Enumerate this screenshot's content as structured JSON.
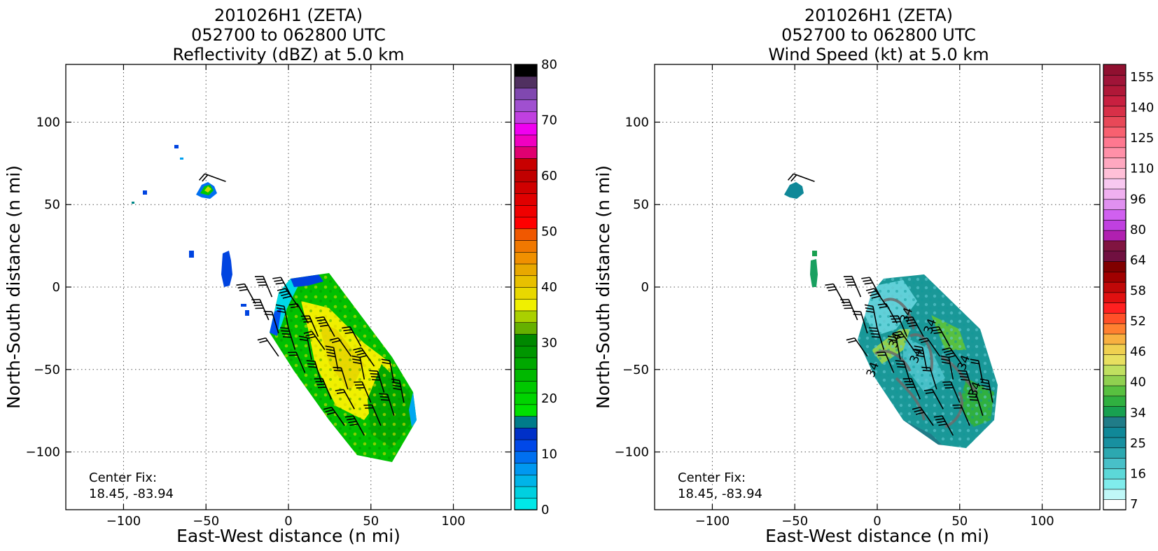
{
  "chart_data": [
    {
      "type": "heatmap",
      "title_lines": [
        "201026H1 (ZETA)",
        "052700 to 062800 UTC",
        "Reflectivity (dBZ) at 5.0 km"
      ],
      "xlabel": "East-West distance (n mi)",
      "ylabel": "North-South distance (n mi)",
      "xlim": [
        -135,
        135
      ],
      "ylim": [
        -135,
        135
      ],
      "xticks": [
        -100,
        -50,
        0,
        50,
        100
      ],
      "yticks": [
        -100,
        -50,
        0,
        50,
        100
      ],
      "grid": true,
      "annotation": "Center Fix:\n18.45, -83.94",
      "colorbar": {
        "range": [
          0,
          80
        ],
        "ticks": [
          0,
          10,
          20,
          30,
          40,
          50,
          60,
          70,
          80
        ],
        "colors": [
          "#00e8e8",
          "#00d0e0",
          "#00b4e8",
          "#0098f0",
          "#0070f0",
          "#0048e8",
          "#0030c8",
          "#007b8a",
          "#00e000",
          "#00d400",
          "#00c800",
          "#00b800",
          "#00a800",
          "#009600",
          "#008800",
          "#66b000",
          "#aad000",
          "#f0f000",
          "#e8d800",
          "#e8c000",
          "#e8a800",
          "#f09000",
          "#f07800",
          "#f05800",
          "#ff0000",
          "#f00000",
          "#e00000",
          "#d00000",
          "#c00000",
          "#c80000",
          "#e00070",
          "#f000c0",
          "#f000f0",
          "#c040e0",
          "#a050d0",
          "#8048b0",
          "#503060",
          "#000000"
        ]
      },
      "barbs": "wind barbs at 5.0 km"
    },
    {
      "type": "heatmap",
      "title_lines": [
        "201026H1 (ZETA)",
        "052700 to 062800 UTC",
        "Wind Speed (kt) at 5.0 km"
      ],
      "xlabel": "East-West distance (n mi)",
      "ylabel": "North-South distance (n mi)",
      "xlim": [
        -135,
        135
      ],
      "ylim": [
        -135,
        135
      ],
      "xticks": [
        -100,
        -50,
        0,
        50,
        100
      ],
      "yticks": [
        -100,
        -50,
        0,
        50,
        100
      ],
      "grid": true,
      "annotation": "Center Fix:\n18.45, -83.94",
      "contour_labels": [
        "34",
        "34",
        "34",
        "34",
        "34",
        "34",
        "34"
      ],
      "colorbar": {
        "labels": [
          "7",
          "16",
          "25",
          "34",
          "40",
          "46",
          "52",
          "58",
          "64",
          "80",
          "96",
          "110",
          "125",
          "140",
          "155"
        ],
        "colors": [
          "#ffffff",
          "#c0f8f8",
          "#80ecec",
          "#5cd8d8",
          "#48c0c8",
          "#2ca8b0",
          "#1890a0",
          "#108898",
          "#207c88",
          "#18a050",
          "#30b040",
          "#58c040",
          "#90d050",
          "#c0e060",
          "#e8e060",
          "#f0d050",
          "#f8b040",
          "#ff8030",
          "#ff5028",
          "#ff2020",
          "#e01010",
          "#c00808",
          "#a00000",
          "#800000",
          "#701040",
          "#801440",
          "#b020b0",
          "#c040e0",
          "#d060f0",
          "#e090f0",
          "#f0b0f0",
          "#f8c8f0",
          "#ffc0d8",
          "#ffa8c0",
          "#ff90a8",
          "#ff7890",
          "#f86070",
          "#e84858",
          "#d83048",
          "#c82040",
          "#b01838",
          "#a01438",
          "#901030"
        ]
      },
      "barbs": "wind barbs at 5.0 km"
    }
  ]
}
